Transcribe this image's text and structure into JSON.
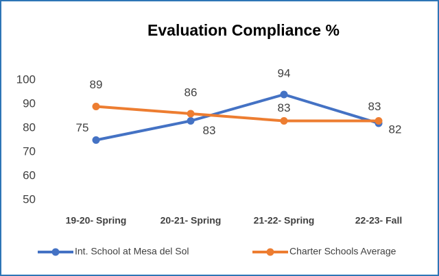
{
  "chart_data": {
    "type": "line",
    "title": "Evaluation Compliance %",
    "categories": [
      "19-20- Spring",
      "20-21- Spring",
      "21-22- Spring",
      "22-23- Fall"
    ],
    "series": [
      {
        "name": "Int. School at Mesa del Sol",
        "color": "#4472c4",
        "values": [
          75,
          83,
          94,
          82
        ]
      },
      {
        "name": "Charter Schools Average",
        "color": "#ed7d31",
        "values": [
          89,
          86,
          83,
          83
        ]
      }
    ],
    "ylim": [
      50,
      100
    ],
    "yticks": [
      50,
      60,
      70,
      80,
      90,
      100
    ],
    "grid": false,
    "legend": "bottom"
  }
}
